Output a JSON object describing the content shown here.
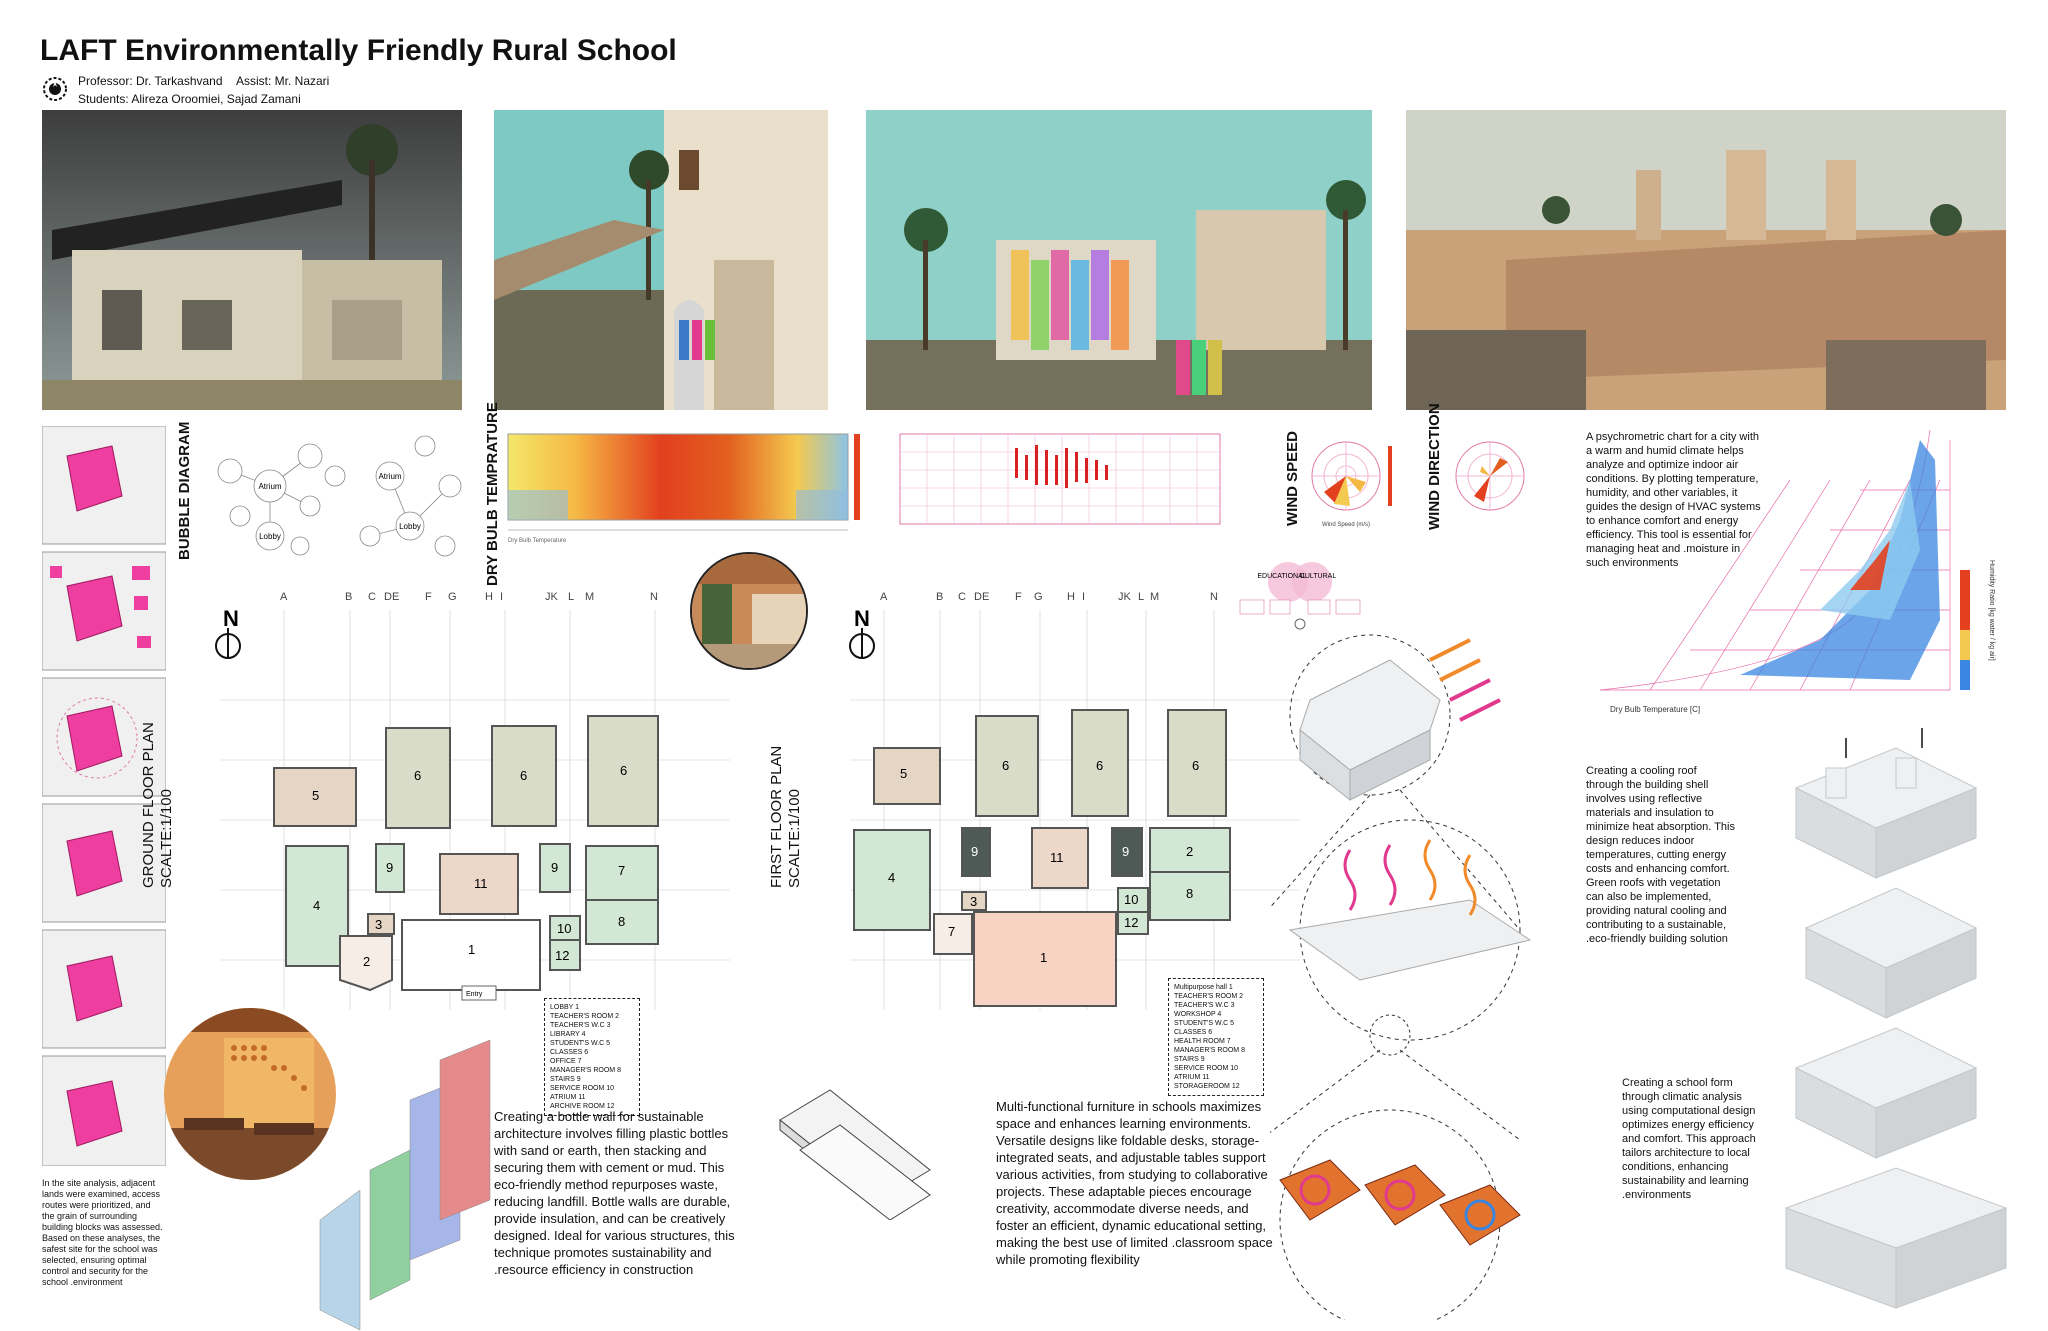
{
  "header": {
    "title": "LAFT Environmentally Friendly Rural School",
    "professor": "Professor: Dr. Tarkashvand",
    "assist": "Assist: Mr. Nazari",
    "students": "Students: Alireza Oroomiei, Sajad Zamani"
  },
  "diagrams": {
    "bubble_title": "BUBBLE DIAGRAM",
    "dry_bulb_title": "DRY BULB TEMPRATURE",
    "wind_speed_title": "WIND SPEED",
    "wind_direction_title": "WIND DIRECTION",
    "bubble_center_left": "Atrium",
    "bubble_lobby_left": "Lobby",
    "bubble_center_right": "Atrium",
    "bubble_lobby_right": "Lobby",
    "concept_left": "EDUCATIONAL",
    "concept_right": "CULTURAL",
    "psychro_xlabel": "Dry Bulb Temperature [C]",
    "psychro_ylabel": "Humidity Ratio [kg water / kg air]",
    "wind_speed_label": "Wind Speed (m/s)"
  },
  "plans": {
    "ground_title_1": "GROUND FLOOR PLAN",
    "ground_title_2": "SCALTE:1/100",
    "first_title_1": "FIRST FLOOR PLAN",
    "first_title_2": "SCALTE:1/100",
    "north": "N",
    "columns": [
      "A",
      "B",
      "C",
      "DE",
      "F",
      "G",
      "H",
      "I",
      "JK",
      "L",
      "M",
      "N"
    ],
    "rows": [
      "1",
      "2",
      "3",
      "4",
      "5",
      "6",
      "7",
      "8",
      "9",
      "10"
    ],
    "ground_legend": [
      "LOBBY 1",
      "TEACHER'S ROOM 2",
      "TEACHER'S W.C 3",
      "LIBRARY 4",
      "STUDENT'S W.C 5",
      "CLASSES 6",
      "OFFICE 7",
      "MANAGER'S ROOM 8",
      "STAIRS 9",
      "SERVICE ROOM 10",
      "ATRIUM 11",
      "ARCHIVE ROOM 12"
    ],
    "first_legend": [
      "Multipurpose hall 1",
      "TEACHER'S ROOM 2",
      "TEACHER'S W.C 3",
      "WORKSHOP 4",
      "STUDENT'S W.C 5",
      "CLASSES 6",
      "HEALTH ROOM 7",
      "MANAGER'S ROOM 8",
      "STAIRS 9",
      "SERVICE ROOM 10",
      "ATRIUM 11",
      "STORAGEROOM 12"
    ],
    "entry_label": "Entry"
  },
  "texts": {
    "site_analysis": "In the site analysis, adjacent lands were examined, access routes were prioritized, and the grain of surrounding building blocks was assessed. Based on these analyses, the safest site for the school was selected, ensuring optimal control and security for the school .environment",
    "bottle_wall": "Creating a bottle wall for sustainable architecture involves filling plastic bottles with sand or earth, then stacking and securing them with cement or mud. This eco-friendly method repurposes waste, reducing landfill. Bottle walls are durable, provide insulation, and can be creatively designed. Ideal for various structures, this technique promotes sustainability and .resource efficiency in construction",
    "furniture": "Multi-functional furniture in schools maximizes space and enhances learning environments. Versatile designs like foldable desks, storage-integrated seats, and adjustable tables support various activities, from studying to collaborative projects. These adaptable pieces encourage creativity, accommodate diverse needs, and foster an efficient, dynamic educational setting, making the best use of limited .classroom space while promoting flexibility",
    "psychrometric": "A psychrometric chart for a city with a warm and humid climate helps analyze and optimize indoor air conditions. By plotting temperature, humidity, and other variables, it guides the design of HVAC systems to enhance comfort and energy efficiency. This tool is essential for managing heat and .moisture in such environments",
    "cooling_roof": "Creating a cooling roof through the building shell involves using reflective materials and insulation to minimize heat absorption. This design reduces indoor temperatures, cutting energy costs and enhancing comfort. Green roofs with vegetation can also be implemented, providing natural cooling and contributing to a sustainable, .eco-friendly building solution",
    "school_form": "Creating a school form through climatic analysis using computational design optimizes energy efficiency and comfort. This approach tailors architecture to local conditions, enhancing sustainability and learning .environments"
  },
  "colors": {
    "pink": "#ee3ea0",
    "classroom": "#d9dcc9",
    "office": "#d2e8d4",
    "atrium": "#ecd7c8",
    "wc": "#e4d5c4",
    "stairs": "#4d5a55",
    "hall": "#f6d3c2",
    "sky": "#7fc9c4",
    "sand": "#c9a27a",
    "orange": "#e2732f"
  },
  "icons": {
    "logo": "emblem-icon",
    "north": "north-arrow-icon"
  }
}
